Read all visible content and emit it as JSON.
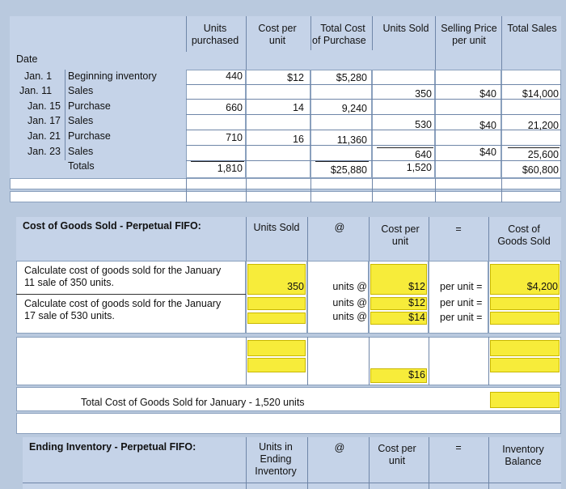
{
  "headers": {
    "units_purchased": [
      "Units",
      "purchased"
    ],
    "cost_per_unit": [
      "Cost per",
      "unit"
    ],
    "total_cost": [
      "Total Cost",
      "of Purchase"
    ],
    "units_sold": "Units Sold",
    "selling_price": [
      "Selling Price",
      "per unit"
    ],
    "total_sales": "Total Sales",
    "date": "Date"
  },
  "rows": [
    {
      "date": "Jan. 1",
      "desc": "Beginning inventory",
      "units_purchased": "440",
      "cost": "$12",
      "total_cost": "$5,280",
      "units_sold": "",
      "price": "",
      "sales": ""
    },
    {
      "date": "Jan. 11",
      "desc": "Sales",
      "units_purchased": "",
      "cost": "",
      "total_cost": "",
      "units_sold": "350",
      "price": "$40",
      "sales": "$14,000"
    },
    {
      "date": "Jan. 15",
      "desc": "Purchase",
      "units_purchased": "660",
      "cost": "14",
      "total_cost": "9,240",
      "units_sold": "",
      "price": "",
      "sales": ""
    },
    {
      "date": "Jan. 17",
      "desc": "Sales",
      "units_purchased": "",
      "cost": "",
      "total_cost": "",
      "units_sold": "530",
      "price": "$40",
      "sales": "21,200"
    },
    {
      "date": "Jan. 21",
      "desc": "Purchase",
      "units_purchased": "710",
      "cost": "16",
      "total_cost": "11,360",
      "units_sold": "",
      "price": "",
      "sales": ""
    },
    {
      "date": "Jan. 23",
      "desc": "Sales",
      "units_purchased": "",
      "cost": "",
      "total_cost": "",
      "units_sold": "640",
      "price": "$40",
      "sales": "25,600"
    }
  ],
  "totals": {
    "label": "Totals",
    "units_purchased": "1,810",
    "total_cost": "$25,880",
    "units_sold": "1,520",
    "sales": "$60,800"
  },
  "cogs": {
    "title": "Cost of Goods Sold - Perpetual FIFO:",
    "col_units_sold": "Units Sold",
    "col_at": "@",
    "col_cost_per_unit": [
      "Cost per",
      "unit"
    ],
    "col_eq": "=",
    "col_cogs": [
      "Cost of",
      "Goods Sold"
    ],
    "q1": [
      "Calculate cost of goods sold for the January",
      "11 sale of 350 units."
    ],
    "q1_units": "350",
    "q1_units_at": "units @",
    "q1_cost": "$12",
    "q1_per_unit": "per unit =",
    "q1_result": "$4,200",
    "q2": [
      "Calculate cost of goods sold for the January",
      "17 sale of 530 units."
    ],
    "q2_units_at": [
      "units @",
      "units @"
    ],
    "q2_costs": [
      "$12",
      "$14"
    ],
    "q2_per_unit": [
      "per unit =",
      "per unit ="
    ],
    "q3_cost": "$16",
    "total_label": "Total Cost of Goods Sold for January  - 1,520 units"
  },
  "ending": {
    "title": "Ending Inventory - Perpetual FIFO:",
    "col_units": [
      "Units in",
      "Ending",
      "Inventory"
    ],
    "col_at": "@",
    "col_cost_per_unit": [
      "Cost per",
      "unit"
    ],
    "col_eq": "=",
    "col_balance": [
      "Inventory",
      "Balance"
    ]
  },
  "colors": {
    "yellow": "#f7ec3a",
    "header_blue": "#c5d3e8",
    "grid_blue": "#b9c9de"
  }
}
